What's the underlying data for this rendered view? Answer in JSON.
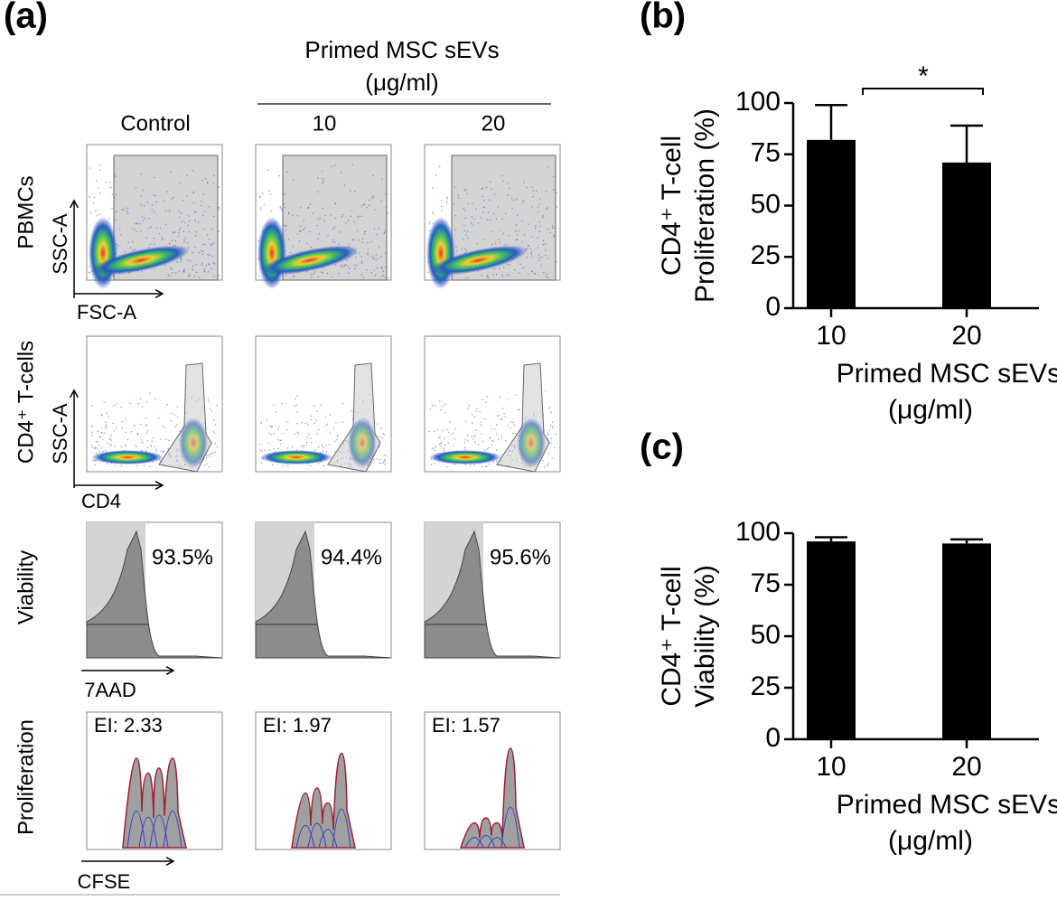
{
  "flow_panel": {
    "panel_label": "(a)",
    "header": [
      "Primed MSC sEVs",
      "(μg/ml)"
    ],
    "columns": [
      "Control",
      "10",
      "20"
    ],
    "rows": [
      "PBMCs",
      "CD4⁺ T-cells",
      "Viability",
      "Proliferation"
    ],
    "axis_labels": [
      "SSC-A",
      "FSC-A",
      "SSC-A",
      "CD4",
      "7AAD",
      "CFSE"
    ],
    "viability": [
      "93.5%",
      "94.4%",
      "95.6%"
    ],
    "ei": [
      "EI: 2.33",
      "EI: 1.97",
      "EI: 1.57"
    ]
  },
  "chart_data": [
    {
      "type": "bar",
      "panel_label": "(b)",
      "ylabel": [
        "CD4⁺ T-cell",
        "Proliferation (%)"
      ],
      "xlabel": [
        "Primed MSC sEVs",
        "(μg/ml)"
      ],
      "categories": [
        "10",
        "20"
      ],
      "values": [
        82,
        71
      ],
      "errors": [
        17,
        18
      ],
      "color": "#000000",
      "ylim": [
        0,
        100
      ],
      "yticks": [
        0,
        25,
        50,
        75,
        100
      ],
      "annotation": "*"
    },
    {
      "type": "bar",
      "panel_label": "(c)",
      "ylabel": [
        "CD4⁺ T-cell",
        "Viability (%)"
      ],
      "xlabel": [
        "Primed MSC sEVs",
        "(μg/ml)"
      ],
      "categories": [
        "10",
        "20"
      ],
      "values": [
        96,
        95
      ],
      "errors": [
        2,
        2
      ],
      "color": "#000000",
      "ylim": [
        0,
        100
      ],
      "yticks": [
        0,
        25,
        50,
        75,
        100
      ]
    }
  ]
}
